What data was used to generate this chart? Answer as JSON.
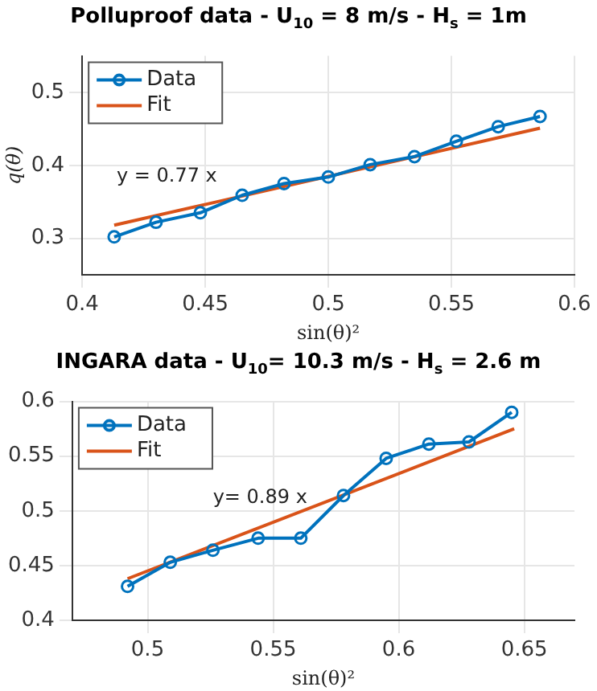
{
  "chart_data": [
    {
      "type": "line",
      "title": "Polluproof data - U$_{10}$ = 8 m/s - H$_{s}$ = 1m",
      "xlabel": "sin(θ)²",
      "ylabel": "q(θ)",
      "xlim": [
        0.4,
        0.6
      ],
      "xticks": [
        0.4,
        0.45,
        0.5,
        0.55,
        0.6
      ],
      "ylim": [
        0.25,
        0.55
      ],
      "yticks": [
        0.3,
        0.4,
        0.5
      ],
      "grid": true,
      "legend": "top left",
      "annotations": [
        "y = 0.77 x"
      ],
      "series": [
        {
          "name": "Data",
          "color": "#0072bd",
          "marker": "circle",
          "x": [
            0.413,
            0.43,
            0.448,
            0.465,
            0.482,
            0.5,
            0.517,
            0.535,
            0.552,
            0.569,
            0.586
          ],
          "values": [
            0.302,
            0.322,
            0.335,
            0.359,
            0.375,
            0.384,
            0.401,
            0.412,
            0.433,
            0.453,
            0.467
          ]
        },
        {
          "name": "Fit",
          "color": "#d95319",
          "marker": "none",
          "x": [
            0.413,
            0.586
          ],
          "values": [
            0.318,
            0.451
          ]
        }
      ]
    },
    {
      "type": "line",
      "title": "INGARA data - U$_{10}$= 10.3 m/s - H$_{s}$ = 2.6 m",
      "xlabel": "sin(θ)²",
      "xlim": [
        0.47,
        0.67
      ],
      "xticks": [
        0.5,
        0.55,
        0.6,
        0.65
      ],
      "ylim": [
        0.4,
        0.6
      ],
      "yticks": [
        0.4,
        0.45,
        0.5,
        0.55,
        0.6
      ],
      "grid": true,
      "legend": "top left",
      "annotations": [
        "y= 0.89 x"
      ],
      "series": [
        {
          "name": "Data",
          "color": "#0072bd",
          "marker": "circle",
          "x": [
            0.492,
            0.509,
            0.526,
            0.544,
            0.561,
            0.578,
            0.595,
            0.612,
            0.628,
            0.645
          ],
          "values": [
            0.431,
            0.453,
            0.464,
            0.475,
            0.475,
            0.514,
            0.548,
            0.561,
            0.563,
            0.59
          ]
        },
        {
          "name": "Fit",
          "color": "#d95319",
          "marker": "none",
          "x": [
            0.492,
            0.646
          ],
          "values": [
            0.438,
            0.575
          ]
        }
      ]
    }
  ]
}
